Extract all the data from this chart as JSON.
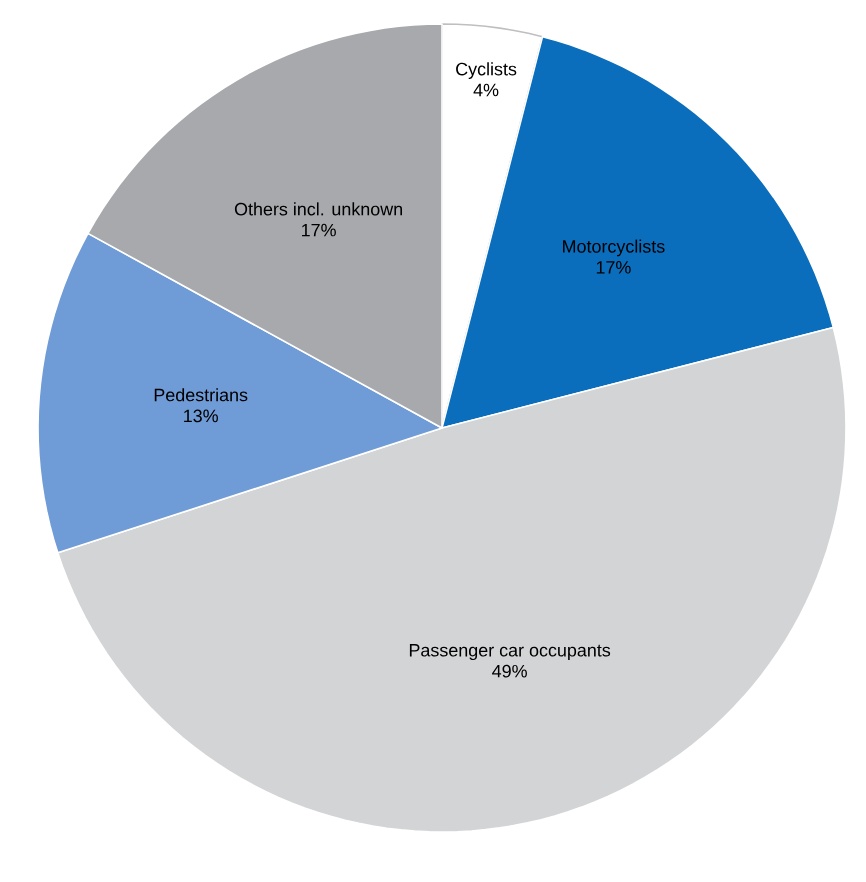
{
  "chart_data": {
    "type": "pie",
    "categories": [
      "Cyclists",
      "Motorcyclists",
      "Passenger car occupants",
      "Pedestrians",
      "Others incl. unknown"
    ],
    "values": [
      4,
      17,
      49,
      13,
      17
    ],
    "value_labels": [
      "4%",
      "17%",
      "49%",
      "13%",
      "17%"
    ],
    "colors": [
      "#ffffff",
      "#0a6ebd",
      "#d3d4d6",
      "#6f9bd6",
      "#a7a9ac"
    ]
  }
}
